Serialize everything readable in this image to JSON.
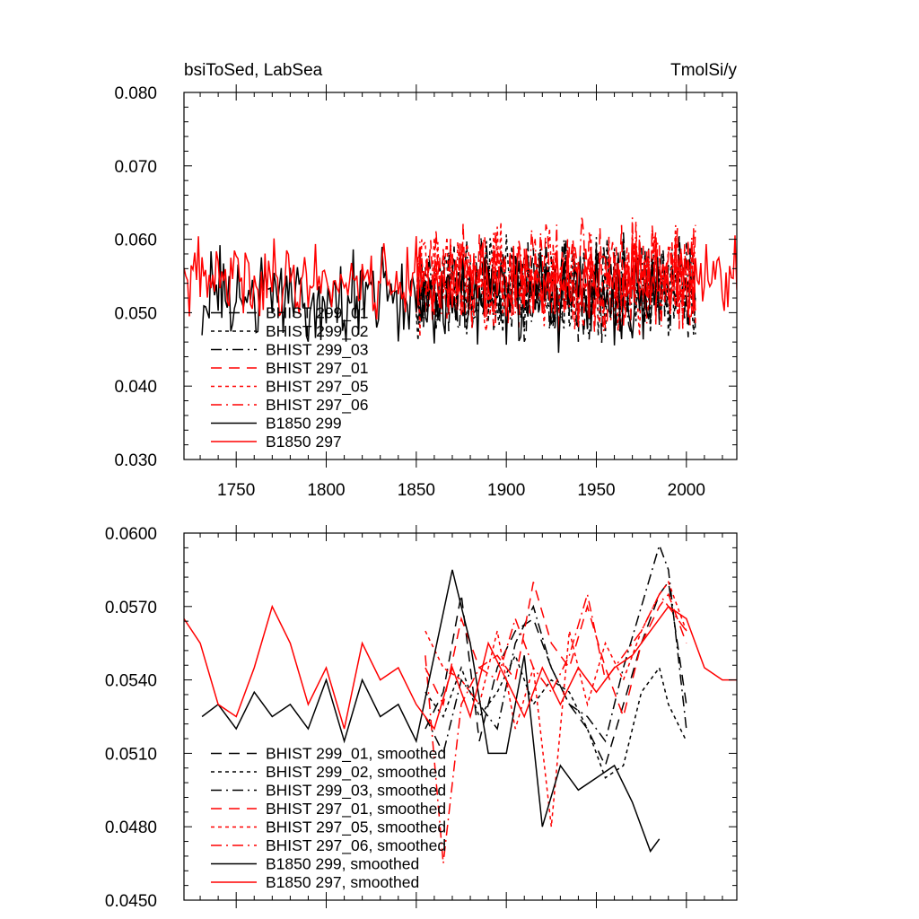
{
  "chart_data": [
    {
      "type": "line",
      "title": "bsiToSed, LabSea",
      "units": "TmolSi/y",
      "xlim": [
        1721,
        2028
      ],
      "ylim": [
        0.03,
        0.08
      ],
      "x_ticks": [
        1750,
        1800,
        1850,
        1900,
        1950,
        2000
      ],
      "x_tick_labels": [
        "1750",
        "1800",
        "1850",
        "1900",
        "1950",
        "2000"
      ],
      "y_ticks": [
        0.03,
        0.04,
        0.05,
        0.06,
        0.07,
        0.08
      ],
      "y_tick_labels": [
        "0.030",
        "0.040",
        "0.050",
        "0.060",
        "0.070",
        "0.080"
      ],
      "legend_position": "lower-left",
      "series": [
        {
          "name": "BHIST 299_01",
          "color": "#000000",
          "dash": "longdash",
          "start": 1850,
          "end": 2005,
          "mean": 0.0535,
          "amp": 0.005,
          "seed": 11
        },
        {
          "name": "BHIST 299_02",
          "color": "#000000",
          "dash": "dot",
          "start": 1850,
          "end": 2005,
          "mean": 0.053,
          "amp": 0.005,
          "seed": 12
        },
        {
          "name": "BHIST 299_03",
          "color": "#000000",
          "dash": "dashdot",
          "start": 1850,
          "end": 2005,
          "mean": 0.0535,
          "amp": 0.005,
          "seed": 13
        },
        {
          "name": "BHIST 297_01",
          "color": "#ff0000",
          "dash": "longdash",
          "start": 1850,
          "end": 2005,
          "mean": 0.055,
          "amp": 0.0055,
          "seed": 21
        },
        {
          "name": "BHIST 297_05",
          "color": "#ff0000",
          "dash": "dot",
          "start": 1850,
          "end": 2005,
          "mean": 0.0545,
          "amp": 0.0055,
          "seed": 22
        },
        {
          "name": "BHIST 297_06",
          "color": "#ff0000",
          "dash": "dashdot",
          "start": 1850,
          "end": 2005,
          "mean": 0.055,
          "amp": 0.0055,
          "seed": 23
        },
        {
          "name": "B1850 299",
          "color": "#000000",
          "dash": "solid",
          "start": 1731,
          "end": 1985,
          "mean": 0.052,
          "amp": 0.0048,
          "seed": 31
        },
        {
          "name": "B1850 297",
          "color": "#ff0000",
          "dash": "solid",
          "start": 1721,
          "end": 2028,
          "mean": 0.0545,
          "amp": 0.004,
          "seed": 41
        }
      ]
    },
    {
      "type": "line",
      "title": "",
      "units": "",
      "xlim": [
        1721,
        2028
      ],
      "ylim": [
        0.045,
        0.06
      ],
      "x_ticks": [
        1750,
        1800,
        1850,
        1900,
        1950,
        2000
      ],
      "x_tick_labels": [],
      "y_ticks": [
        0.045,
        0.048,
        0.051,
        0.054,
        0.057,
        0.06
      ],
      "y_tick_labels": [
        "0.0450",
        "0.0480",
        "0.0510",
        "0.0540",
        "0.0570",
        "0.0600"
      ],
      "legend_position": "lower-left",
      "series": [
        {
          "name": "BHIST 299_01, smoothed",
          "color": "#000000",
          "dash": "longdash",
          "x": [
            1855,
            1865,
            1875,
            1885,
            1895,
            1905,
            1915,
            1925,
            1935,
            1945,
            1955,
            1965,
            1975,
            1985,
            1990,
            2000
          ],
          "y": [
            0.052,
            0.0535,
            0.0575,
            0.0515,
            0.0545,
            0.056,
            0.0565,
            0.0545,
            0.053,
            0.052,
            0.0505,
            0.053,
            0.0555,
            0.0575,
            0.058,
            0.053
          ]
        },
        {
          "name": "BHIST 299_02, smoothed",
          "color": "#000000",
          "dash": "dot",
          "x": [
            1855,
            1865,
            1875,
            1885,
            1895,
            1905,
            1915,
            1925,
            1935,
            1945,
            1955,
            1965,
            1975,
            1985,
            1990,
            2000
          ],
          "y": [
            0.0535,
            0.0525,
            0.0545,
            0.0525,
            0.0535,
            0.055,
            0.053,
            0.054,
            0.0535,
            0.052,
            0.05,
            0.0505,
            0.0535,
            0.0545,
            0.053,
            0.0515
          ]
        },
        {
          "name": "BHIST 299_03, smoothed",
          "color": "#000000",
          "dash": "dashdot",
          "x": [
            1855,
            1865,
            1875,
            1885,
            1895,
            1905,
            1915,
            1925,
            1935,
            1945,
            1955,
            1965,
            1975,
            1985,
            1990,
            2000
          ],
          "y": [
            0.0525,
            0.051,
            0.054,
            0.053,
            0.052,
            0.0555,
            0.057,
            0.0545,
            0.053,
            0.0525,
            0.0515,
            0.0545,
            0.057,
            0.0595,
            0.0585,
            0.052
          ]
        },
        {
          "name": "BHIST 297_01, smoothed",
          "color": "#ff0000",
          "dash": "longdash",
          "x": [
            1855,
            1865,
            1875,
            1885,
            1895,
            1905,
            1915,
            1925,
            1935,
            1945,
            1955,
            1965,
            1975,
            1985,
            1990,
            2000
          ],
          "y": [
            0.0545,
            0.053,
            0.0565,
            0.0545,
            0.055,
            0.054,
            0.058,
            0.0555,
            0.0545,
            0.057,
            0.0545,
            0.0525,
            0.0555,
            0.057,
            0.0575,
            0.0555
          ]
        },
        {
          "name": "BHIST 297_05, smoothed",
          "color": "#ff0000",
          "dash": "dot",
          "x": [
            1855,
            1865,
            1875,
            1885,
            1895,
            1905,
            1915,
            1925,
            1935,
            1945,
            1955,
            1965,
            1975,
            1985,
            1990,
            2000
          ],
          "y": [
            0.056,
            0.0545,
            0.054,
            0.053,
            0.056,
            0.052,
            0.0545,
            0.048,
            0.056,
            0.053,
            0.0555,
            0.054,
            0.056,
            0.0575,
            0.058,
            0.056
          ]
        },
        {
          "name": "BHIST 297_06, smoothed",
          "color": "#ff0000",
          "dash": "dashdot",
          "x": [
            1855,
            1865,
            1875,
            1885,
            1895,
            1905,
            1915,
            1925,
            1935,
            1945,
            1955,
            1965,
            1975,
            1985,
            1990,
            2000
          ],
          "y": [
            0.055,
            0.0465,
            0.053,
            0.0545,
            0.054,
            0.0565,
            0.0545,
            0.0535,
            0.055,
            0.0575,
            0.054,
            0.055,
            0.056,
            0.0575,
            0.057,
            0.056
          ]
        },
        {
          "name": "B1850 299, smoothed",
          "color": "#000000",
          "dash": "solid",
          "x": [
            1731,
            1740,
            1750,
            1760,
            1770,
            1780,
            1790,
            1800,
            1810,
            1820,
            1830,
            1840,
            1850,
            1860,
            1870,
            1880,
            1890,
            1900,
            1910,
            1920,
            1930,
            1940,
            1950,
            1960,
            1970,
            1980,
            1985
          ],
          "y": [
            0.0525,
            0.053,
            0.052,
            0.0535,
            0.0525,
            0.053,
            0.052,
            0.054,
            0.0515,
            0.054,
            0.0525,
            0.053,
            0.0515,
            0.055,
            0.0585,
            0.0555,
            0.051,
            0.051,
            0.055,
            0.048,
            0.0505,
            0.0495,
            0.05,
            0.0505,
            0.049,
            0.047,
            0.0475
          ]
        },
        {
          "name": "B1850 297, smoothed",
          "color": "#ff0000",
          "dash": "solid",
          "x": [
            1721,
            1730,
            1740,
            1750,
            1760,
            1770,
            1780,
            1790,
            1800,
            1810,
            1820,
            1830,
            1840,
            1850,
            1860,
            1870,
            1880,
            1890,
            1900,
            1910,
            1920,
            1930,
            1940,
            1950,
            1960,
            1970,
            1980,
            1990,
            2000,
            2010,
            2020,
            2028
          ],
          "y": [
            0.0565,
            0.0555,
            0.053,
            0.0525,
            0.0545,
            0.057,
            0.0555,
            0.053,
            0.0545,
            0.052,
            0.0555,
            0.054,
            0.0545,
            0.053,
            0.052,
            0.0545,
            0.0525,
            0.0555,
            0.054,
            0.0525,
            0.0545,
            0.053,
            0.0545,
            0.0535,
            0.0545,
            0.055,
            0.056,
            0.057,
            0.0565,
            0.0545,
            0.054,
            0.054
          ]
        }
      ]
    }
  ]
}
